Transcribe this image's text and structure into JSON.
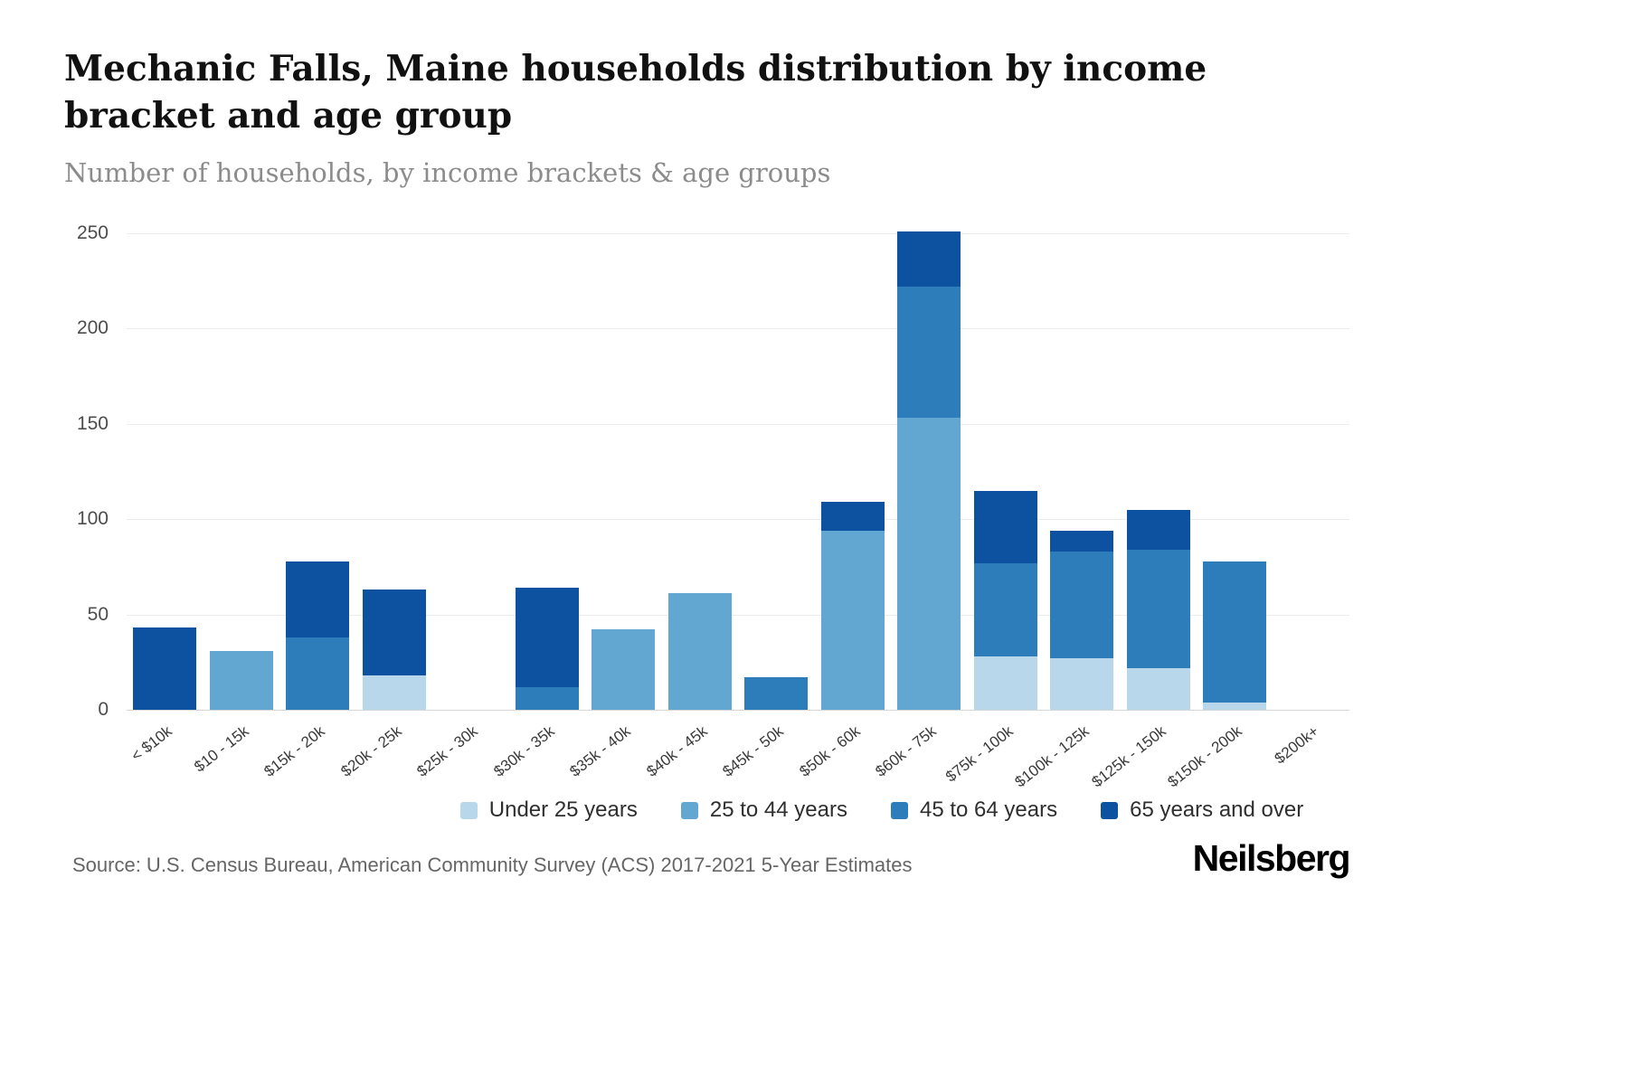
{
  "chart_data": {
    "type": "bar",
    "stacked": true,
    "title": "Mechanic Falls, Maine households distribution by income bracket and age group",
    "subtitle": "Number of households, by income brackets & age groups",
    "categories": [
      "< $10k",
      "$10 - 15k",
      "$15k - 20k",
      "$20k - 25k",
      "$25k - 30k",
      "$30k - 35k",
      "$35k - 40k",
      "$40k - 45k",
      "$45k - 50k",
      "$50k - 60k",
      "$60k - 75k",
      "$75k - 100k",
      "$100k - 125k",
      "$125k - 150k",
      "$150k - 200k",
      "$200k+"
    ],
    "series": [
      {
        "name": "Under 25 years",
        "color": "#b9d7ea",
        "values": [
          0,
          0,
          0,
          18,
          0,
          0,
          0,
          0,
          0,
          0,
          0,
          28,
          27,
          22,
          4,
          0
        ]
      },
      {
        "name": "25 to 44 years",
        "color": "#61a7d2",
        "values": [
          0,
          31,
          0,
          0,
          0,
          0,
          42,
          61,
          0,
          94,
          153,
          0,
          0,
          0,
          0,
          0
        ]
      },
      {
        "name": "45 to 64 years",
        "color": "#2e7dbb",
        "values": [
          0,
          0,
          38,
          0,
          0,
          12,
          0,
          0,
          17,
          0,
          69,
          49,
          56,
          62,
          74,
          0
        ]
      },
      {
        "name": "65 years and over",
        "color": "#0d52a0",
        "values": [
          43,
          0,
          40,
          45,
          0,
          52,
          0,
          0,
          0,
          15,
          29,
          38,
          11,
          21,
          0,
          0
        ]
      }
    ],
    "xlabel": "",
    "ylabel": "",
    "ylim": [
      0,
      250
    ],
    "yticks": [
      0,
      50,
      100,
      150,
      200,
      250
    ],
    "grid": true,
    "legend_position": "bottom"
  },
  "footer": {
    "source": "Source: U.S. Census Bureau, American Community Survey (ACS) 2017-2021 5-Year Estimates",
    "brand": "Neilsberg"
  }
}
